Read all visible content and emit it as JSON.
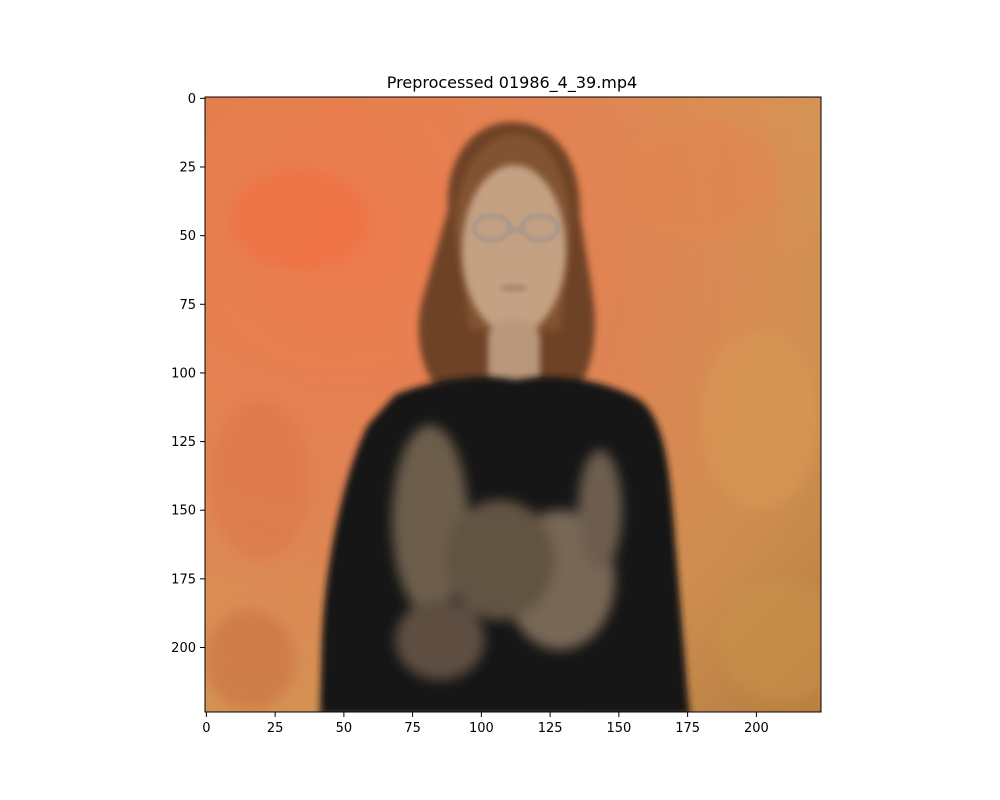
{
  "figure": {
    "title": "Preprocessed 01986_4_39.mp4"
  },
  "image": {
    "extent_x": [
      0,
      224
    ],
    "extent_y": [
      0,
      224
    ],
    "background_color": "#e07a4a",
    "shirt_color": "#151313",
    "hair_color": "#7a4a2a",
    "skin_color": "#c9a585"
  },
  "axes": {
    "x_ticks": [
      {
        "value": 0,
        "label": "0"
      },
      {
        "value": 25,
        "label": "25"
      },
      {
        "value": 50,
        "label": "50"
      },
      {
        "value": 75,
        "label": "75"
      },
      {
        "value": 100,
        "label": "100"
      },
      {
        "value": 125,
        "label": "125"
      },
      {
        "value": 150,
        "label": "150"
      },
      {
        "value": 175,
        "label": "175"
      },
      {
        "value": 200,
        "label": "200"
      }
    ],
    "y_ticks": [
      {
        "value": 0,
        "label": "0"
      },
      {
        "value": 25,
        "label": "25"
      },
      {
        "value": 50,
        "label": "50"
      },
      {
        "value": 75,
        "label": "75"
      },
      {
        "value": 100,
        "label": "100"
      },
      {
        "value": 125,
        "label": "125"
      },
      {
        "value": 150,
        "label": "150"
      },
      {
        "value": 175,
        "label": "175"
      },
      {
        "value": 200,
        "label": "200"
      }
    ]
  }
}
